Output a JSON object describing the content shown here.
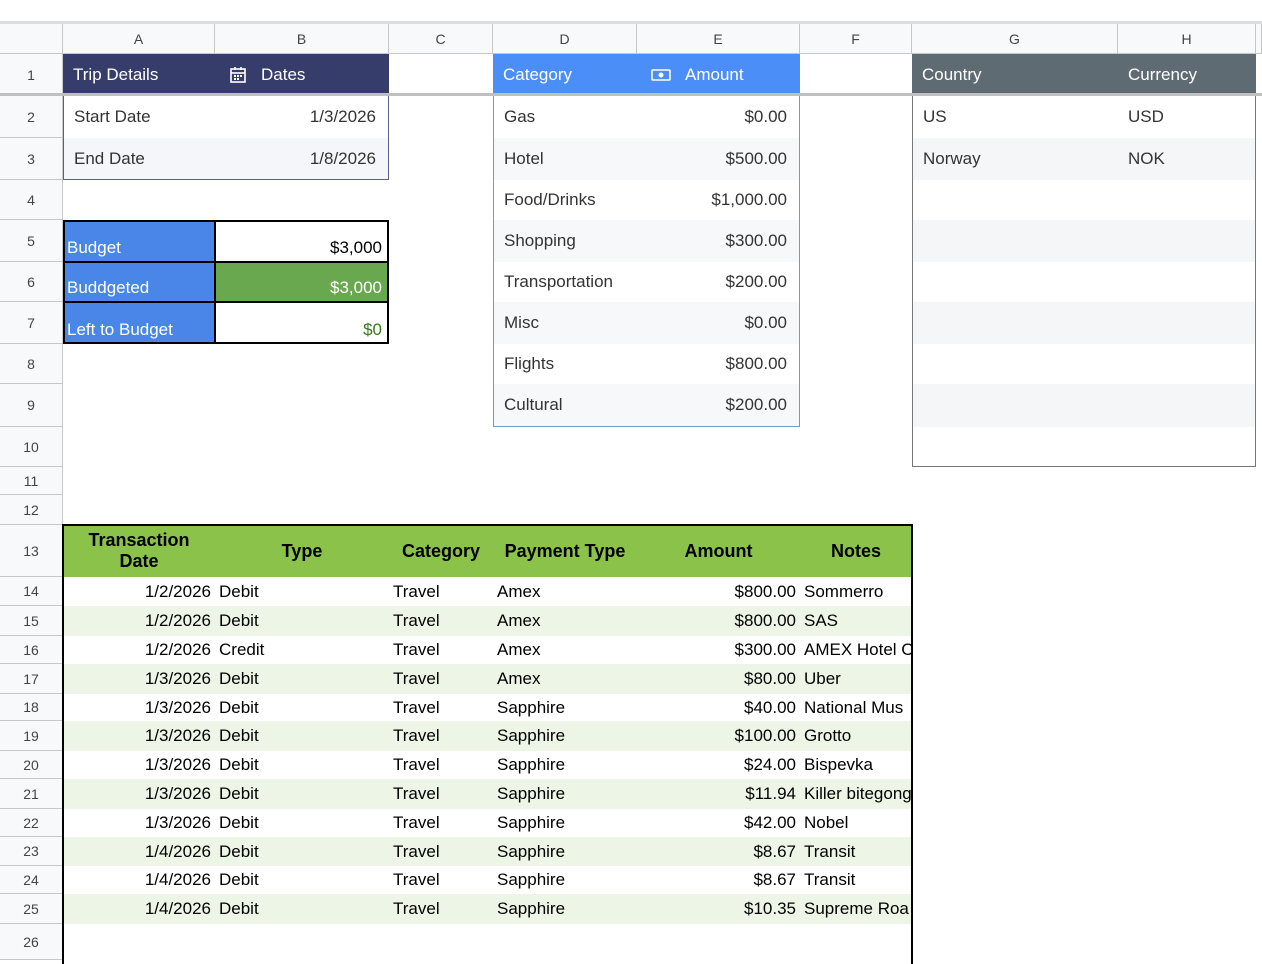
{
  "columns": [
    "A",
    "B",
    "C",
    "D",
    "E",
    "F",
    "G",
    "H"
  ],
  "rows": [
    "1",
    "2",
    "3",
    "4",
    "5",
    "6",
    "7",
    "8",
    "9",
    "10",
    "11",
    "12",
    "13",
    "14",
    "15",
    "16",
    "17",
    "18",
    "19",
    "20",
    "21",
    "22",
    "23",
    "24",
    "25",
    "26"
  ],
  "trip": {
    "header": [
      "Trip Details",
      "Dates"
    ],
    "rows": [
      [
        "Start Date",
        "1/3/2026"
      ],
      [
        "End Date",
        "1/8/2026"
      ]
    ]
  },
  "budget": {
    "rows": [
      [
        "Budget",
        "$3,000"
      ],
      [
        "Buddgeted",
        "$3,000"
      ],
      [
        "Left to Budget",
        "$0"
      ]
    ]
  },
  "categories": {
    "header": [
      "Category",
      "Amount"
    ],
    "rows": [
      [
        "Gas",
        "$0.00"
      ],
      [
        "Hotel",
        "$500.00"
      ],
      [
        "Food/Drinks",
        "$1,000.00"
      ],
      [
        "Shopping",
        "$300.00"
      ],
      [
        "Transportation",
        "$200.00"
      ],
      [
        "Misc",
        "$0.00"
      ],
      [
        "Flights",
        "$800.00"
      ],
      [
        "Cultural",
        "$200.00"
      ]
    ]
  },
  "countries": {
    "header": [
      "Country",
      "Currency"
    ],
    "rows": [
      [
        "US",
        "USD"
      ],
      [
        "Norway",
        "NOK"
      ]
    ]
  },
  "transactions": {
    "header": [
      "Transaction Date",
      "Type",
      "Category",
      "Payment Type",
      "Amount",
      "Notes"
    ],
    "rows": [
      [
        "1/2/2026",
        "Debit",
        "Travel",
        "Amex",
        "$800.00",
        "Sommerro"
      ],
      [
        "1/2/2026",
        "Debit",
        "Travel",
        "Amex",
        "$800.00",
        "SAS"
      ],
      [
        "1/2/2026",
        "Credit",
        "Travel",
        "Amex",
        "$300.00",
        "AMEX Hotel C"
      ],
      [
        "1/3/2026",
        "Debit",
        "Travel",
        "Amex",
        "$80.00",
        "Uber"
      ],
      [
        "1/3/2026",
        "Debit",
        "Travel",
        "Sapphire",
        "$40.00",
        "National Mus"
      ],
      [
        "1/3/2026",
        "Debit",
        "Travel",
        "Sapphire",
        "$100.00",
        "Grotto"
      ],
      [
        "1/3/2026",
        "Debit",
        "Travel",
        "Sapphire",
        "$24.00",
        "Bispevka"
      ],
      [
        "1/3/2026",
        "Debit",
        "Travel",
        "Sapphire",
        "$11.94",
        "Killer bitegong"
      ],
      [
        "1/3/2026",
        "Debit",
        "Travel",
        "Sapphire",
        "$42.00",
        "Nobel"
      ],
      [
        "1/4/2026",
        "Debit",
        "Travel",
        "Sapphire",
        "$8.67",
        "Transit"
      ],
      [
        "1/4/2026",
        "Debit",
        "Travel",
        "Sapphire",
        "$8.67",
        "Transit"
      ],
      [
        "1/4/2026",
        "Debit",
        "Travel",
        "Sapphire",
        "$10.35",
        "Supreme Roa"
      ]
    ]
  }
}
